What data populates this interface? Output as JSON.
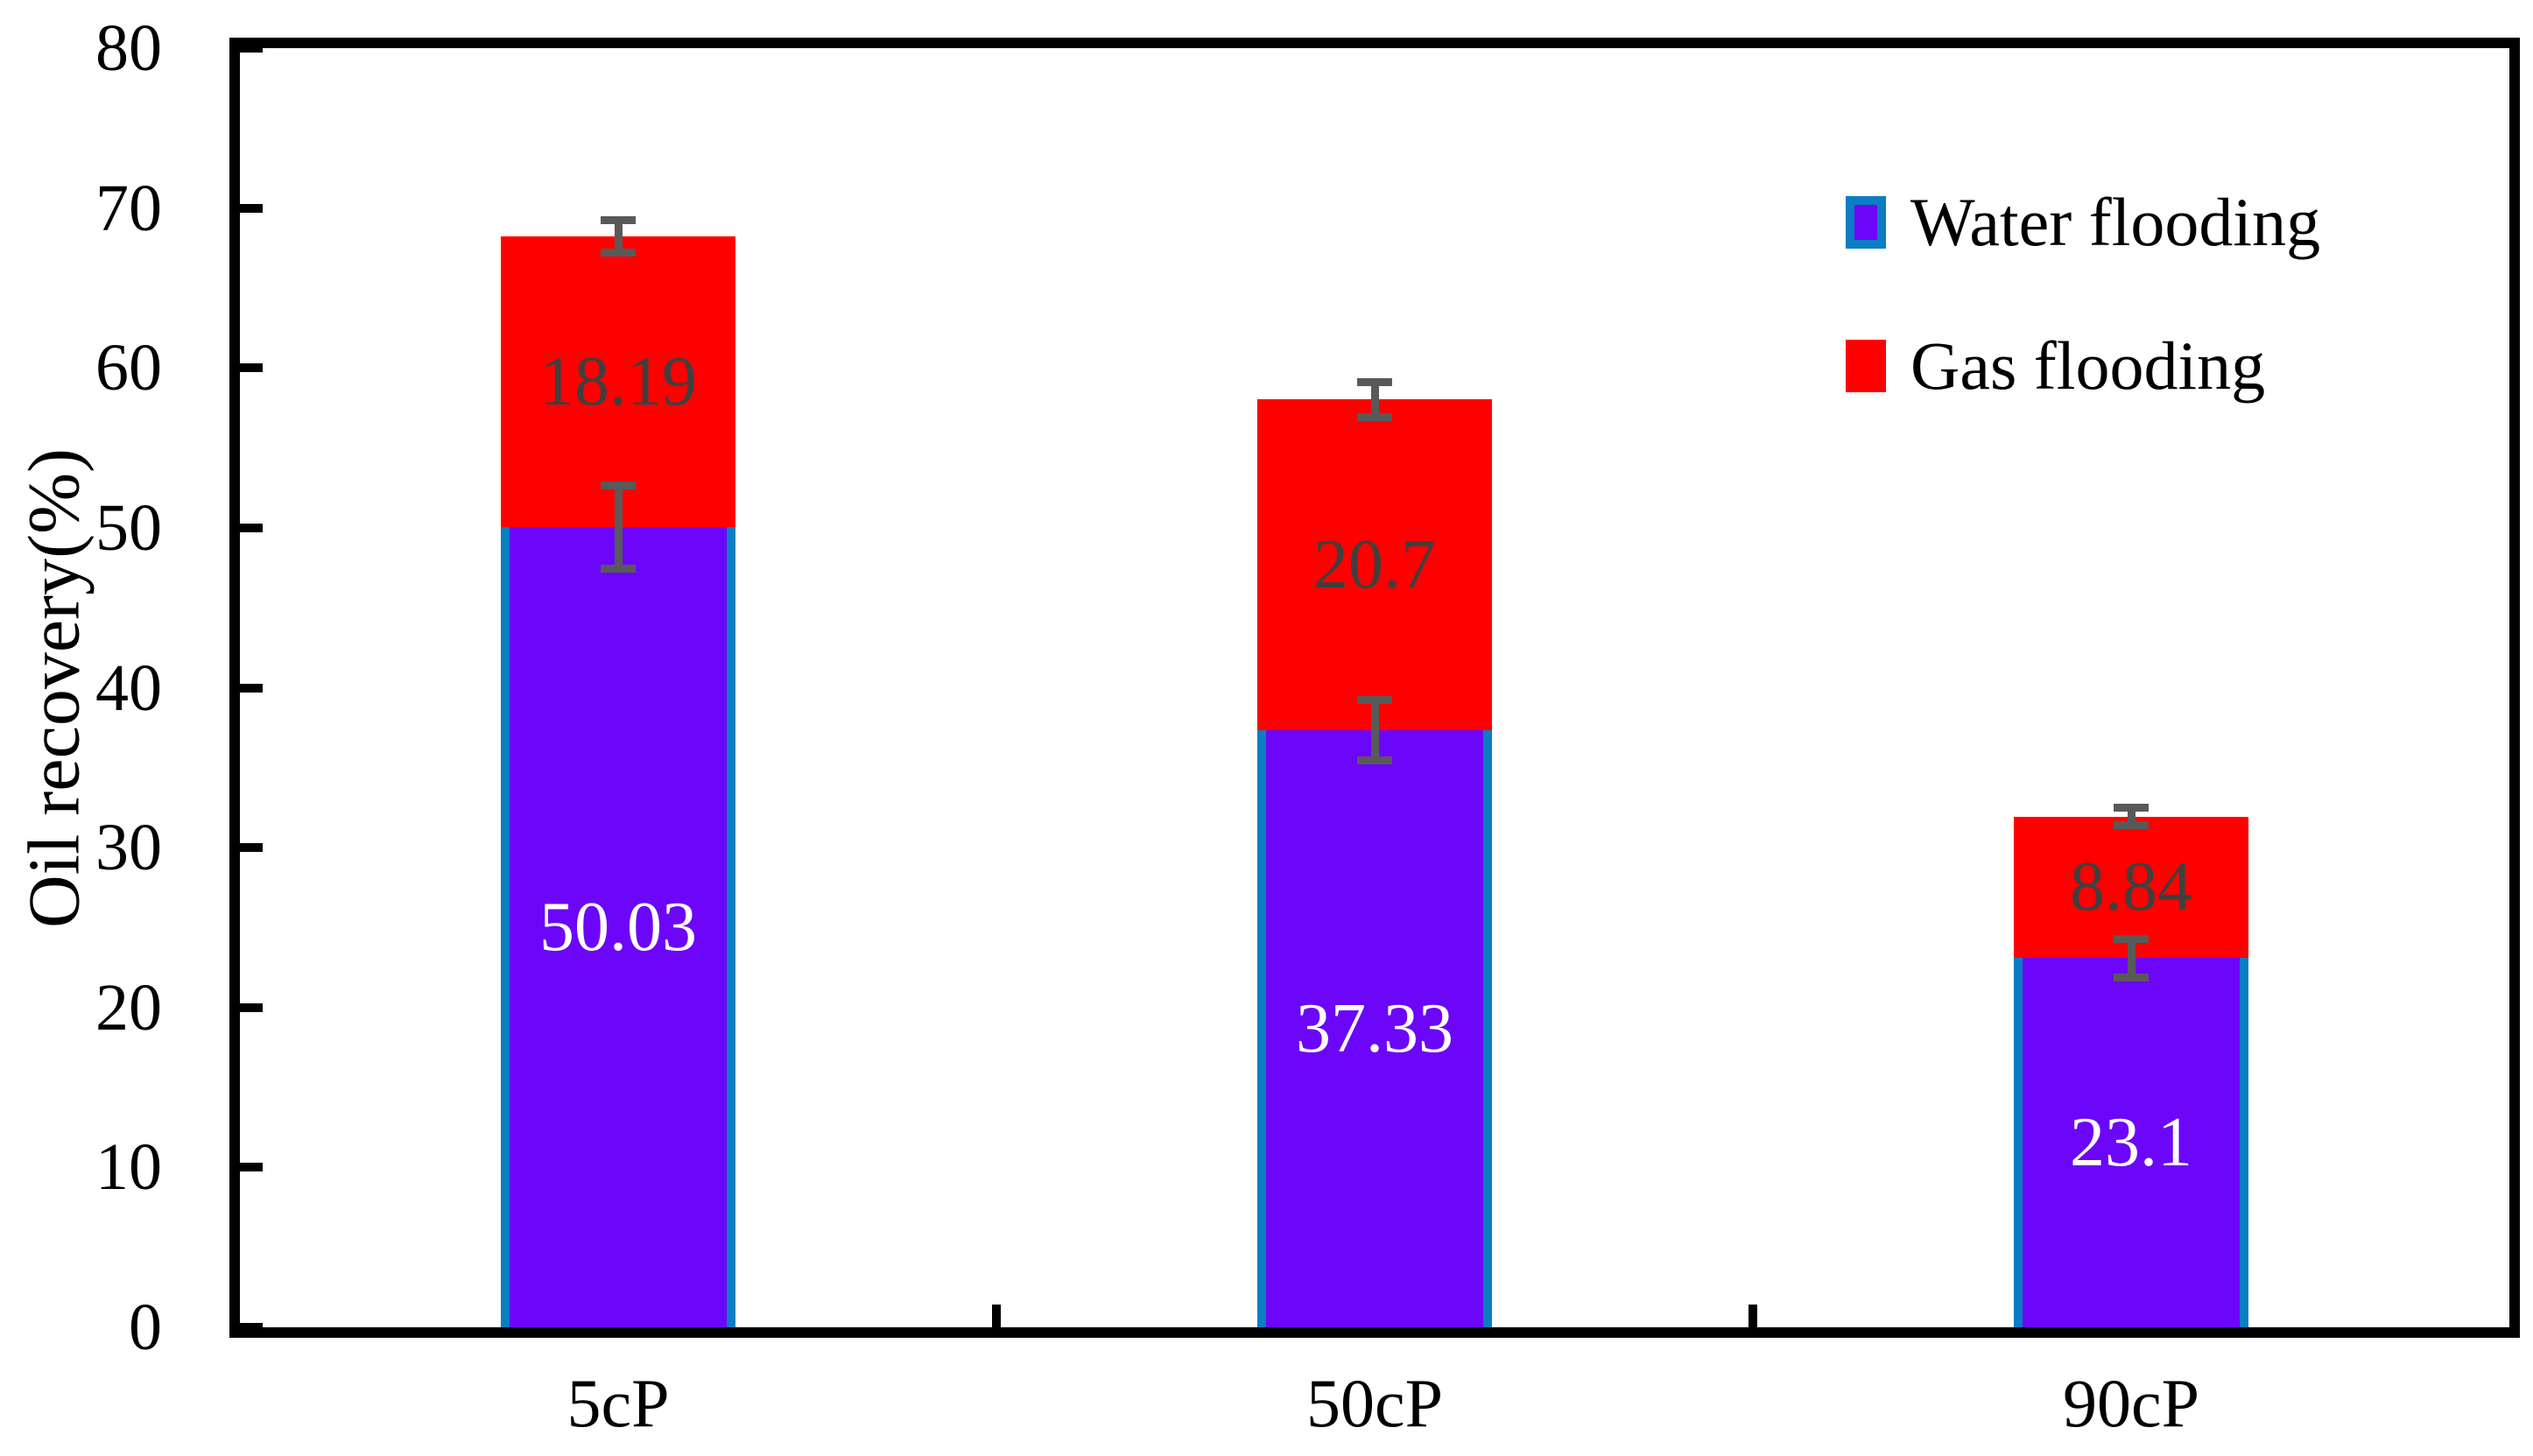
{
  "figure": {
    "title": "",
    "y_axis_title": "Oil recovery(%)"
  },
  "colors": {
    "water_fill": "#6C06F8",
    "water_border": "#0B7DC2",
    "gas_fill": "#FF0000",
    "error_bar": "#595959",
    "axis": "#000000",
    "label_on_water": "#FFFFFF",
    "label_on_gas": "#3F3F3F",
    "background": "#FFFFFF"
  },
  "legend": {
    "items": [
      {
        "label": "Water flooding",
        "swatch": "water"
      },
      {
        "label": "Gas flooding",
        "swatch": "gas"
      }
    ]
  },
  "chart_data": {
    "type": "bar",
    "stacked": true,
    "categories": [
      "5cP",
      "50cP",
      "90cP"
    ],
    "series": [
      {
        "name": "Water flooding",
        "values": [
          50.03,
          37.33,
          23.1
        ]
      },
      {
        "name": "Gas flooding",
        "values": [
          18.19,
          20.7,
          8.84
        ]
      }
    ],
    "stack_totals": [
      68.22,
      58.03,
      31.94
    ],
    "error_bars": {
      "on_water_top": [
        2.6,
        1.9,
        1.2
      ],
      "on_stack_top": [
        1.0,
        1.1,
        0.55
      ]
    },
    "title": "",
    "xlabel": "",
    "ylabel": "Oil recovery(%)",
    "ylim": [
      0,
      80
    ],
    "yticks": [
      0,
      10,
      20,
      30,
      40,
      50,
      60,
      70,
      80
    ],
    "grid": false,
    "legend_position": "upper right",
    "plot_border": "full-box",
    "tick_direction": "in"
  }
}
